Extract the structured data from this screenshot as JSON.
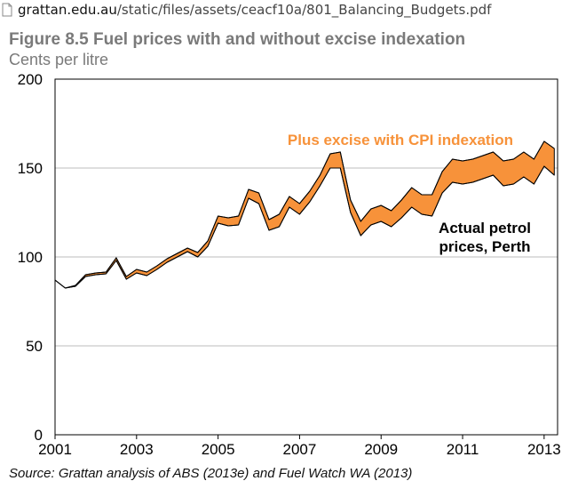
{
  "browser": {
    "url_domain": "grattan.edu.au",
    "url_path": "/static/files/assets/ceacf10a/801_Balancing_Budgets.pdf"
  },
  "figure": {
    "title": "Figure 8.5 Fuel prices with and without excise indexation",
    "subtitle": "Cents per litre",
    "source": "Source: Grattan analysis of ABS (2013e) and Fuel Watch WA (2013)"
  },
  "colors": {
    "band": "#f7923a",
    "gridline": "#bdbdbd",
    "annotation_orange": "#f7923a"
  },
  "chart_data": {
    "type": "area",
    "title": "Figure 8.5 Fuel prices with and without excise indexation",
    "ylabel": "Cents per litre",
    "xlim": [
      2001.0,
      2013.33
    ],
    "ylim": [
      0,
      200
    ],
    "yticks": [
      0,
      50,
      100,
      150,
      200
    ],
    "xticks": [
      2001,
      2003,
      2005,
      2007,
      2009,
      2011,
      2013
    ],
    "grid": "horizontal",
    "annotations": [
      {
        "text": "Plus excise with CPI indexation",
        "color": "orange"
      },
      {
        "text": "Actual petrol prices, Perth",
        "color": "black"
      }
    ],
    "series": [
      {
        "name": "Actual petrol prices, Perth",
        "x": [
          2001.0,
          2001.25,
          2001.5,
          2001.75,
          2002.0,
          2002.25,
          2002.5,
          2002.75,
          2003.0,
          2003.25,
          2003.5,
          2003.75,
          2004.0,
          2004.25,
          2004.5,
          2004.75,
          2005.0,
          2005.25,
          2005.5,
          2005.75,
          2006.0,
          2006.25,
          2006.5,
          2006.75,
          2007.0,
          2007.25,
          2007.5,
          2007.75,
          2008.0,
          2008.25,
          2008.5,
          2008.75,
          2009.0,
          2009.25,
          2009.5,
          2009.75,
          2010.0,
          2010.25,
          2010.5,
          2010.75,
          2011.0,
          2011.25,
          2011.5,
          2011.75,
          2012.0,
          2012.25,
          2012.5,
          2012.75,
          2013.0,
          2013.25
        ],
        "values": [
          87,
          82.5,
          83.5,
          89,
          90,
          90.5,
          98,
          87.5,
          91,
          89.5,
          93,
          97,
          100,
          103,
          100,
          106,
          119,
          117.5,
          118,
          133,
          130,
          115,
          117,
          128,
          124,
          131,
          140,
          150,
          150,
          125,
          112,
          118,
          120,
          117,
          122,
          128,
          124,
          123,
          136,
          142,
          141,
          142,
          144,
          146,
          140,
          141,
          145,
          141,
          151,
          146
        ]
      },
      {
        "name": "Plus excise with CPI indexation",
        "x": [
          2001.0,
          2001.25,
          2001.5,
          2001.75,
          2002.0,
          2002.25,
          2002.5,
          2002.75,
          2003.0,
          2003.25,
          2003.5,
          2003.75,
          2004.0,
          2004.25,
          2004.5,
          2004.75,
          2005.0,
          2005.25,
          2005.5,
          2005.75,
          2006.0,
          2006.25,
          2006.5,
          2006.75,
          2007.0,
          2007.25,
          2007.5,
          2007.75,
          2008.0,
          2008.25,
          2008.5,
          2008.75,
          2009.0,
          2009.25,
          2009.5,
          2009.75,
          2010.0,
          2010.25,
          2010.5,
          2010.75,
          2011.0,
          2011.25,
          2011.5,
          2011.75,
          2012.0,
          2012.25,
          2012.5,
          2012.75,
          2013.0,
          2013.25
        ],
        "values": [
          87,
          82.5,
          84,
          90,
          91,
          91.5,
          99.5,
          89,
          93,
          91.5,
          95,
          99,
          102,
          105,
          102.5,
          109,
          123,
          122,
          123,
          138,
          136,
          121,
          124,
          134,
          130,
          137,
          146,
          158,
          159,
          132,
          120,
          127,
          129,
          126,
          132,
          139,
          135,
          135,
          148,
          155,
          154,
          155,
          157,
          159,
          154,
          155,
          159,
          155,
          165,
          161
        ]
      }
    ]
  }
}
